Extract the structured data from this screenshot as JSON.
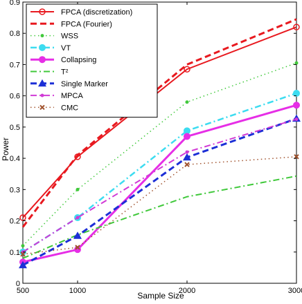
{
  "chart_data": {
    "type": "line",
    "title": "",
    "xlabel": "Sample Size",
    "ylabel": "Power",
    "x": [
      500,
      1000,
      2000,
      3000
    ],
    "xlim": [
      500,
      3000
    ],
    "ylim": [
      0,
      0.9
    ],
    "xticks": [
      "500",
      "1000",
      "2000",
      "3000"
    ],
    "yticks": [
      "0",
      "0.1",
      "0.2",
      "0.3",
      "0.4",
      "0.5",
      "0.6",
      "0.7",
      "0.8",
      "0.9"
    ],
    "grid": false,
    "legend_position": "top-left",
    "series": [
      {
        "name": "FPCA (discretization)",
        "values": [
          0.21,
          0.405,
          0.685,
          0.82
        ],
        "color": "#e8191f",
        "dash": "solid",
        "marker": "circle-open",
        "width": 2
      },
      {
        "name": "FPCA (Fourier)",
        "values": [
          0.18,
          0.41,
          0.7,
          0.845
        ],
        "color": "#e8191f",
        "dash": "dash",
        "marker": "none",
        "width": 3
      },
      {
        "name": "WSS",
        "values": [
          0.12,
          0.3,
          0.58,
          0.705
        ],
        "color": "#41c93c",
        "dash": "dot",
        "marker": "dot",
        "width": 1.5
      },
      {
        "name": "VT",
        "values": [
          0.1,
          0.21,
          0.488,
          0.608
        ],
        "color": "#3cdcf0",
        "dash": "dashdot",
        "marker": "circle",
        "width": 2.5
      },
      {
        "name": "Collapsing",
        "values": [
          0.068,
          0.108,
          0.47,
          0.57
        ],
        "color": "#e62ee6",
        "dash": "solid",
        "marker": "circle",
        "width": 3
      },
      {
        "name": "T²",
        "values": [
          0.08,
          0.155,
          0.277,
          0.343
        ],
        "color": "#3fc83a",
        "dash": "dashdot",
        "marker": "none",
        "width": 2
      },
      {
        "name": "Single Marker",
        "values": [
          0.058,
          0.152,
          0.403,
          0.527
        ],
        "color": "#1c2fd6",
        "dash": "dash",
        "marker": "triangle",
        "width": 3
      },
      {
        "name": "MPCA",
        "values": [
          0.1,
          0.21,
          0.42,
          0.525
        ],
        "color": "#d13ad6",
        "dash": "dashdot",
        "marker": "dot",
        "width": 2
      },
      {
        "name": "CMC",
        "values": [
          0.093,
          0.115,
          0.38,
          0.405
        ],
        "color": "#a0522d",
        "dash": "dot",
        "marker": "x",
        "width": 1.5
      }
    ]
  },
  "legend": {
    "items": [
      "FPCA (discretization)",
      "FPCA (Fourier)",
      "WSS",
      "VT",
      "Collapsing",
      "T²",
      "Single Marker",
      "MPCA",
      "CMC"
    ]
  }
}
